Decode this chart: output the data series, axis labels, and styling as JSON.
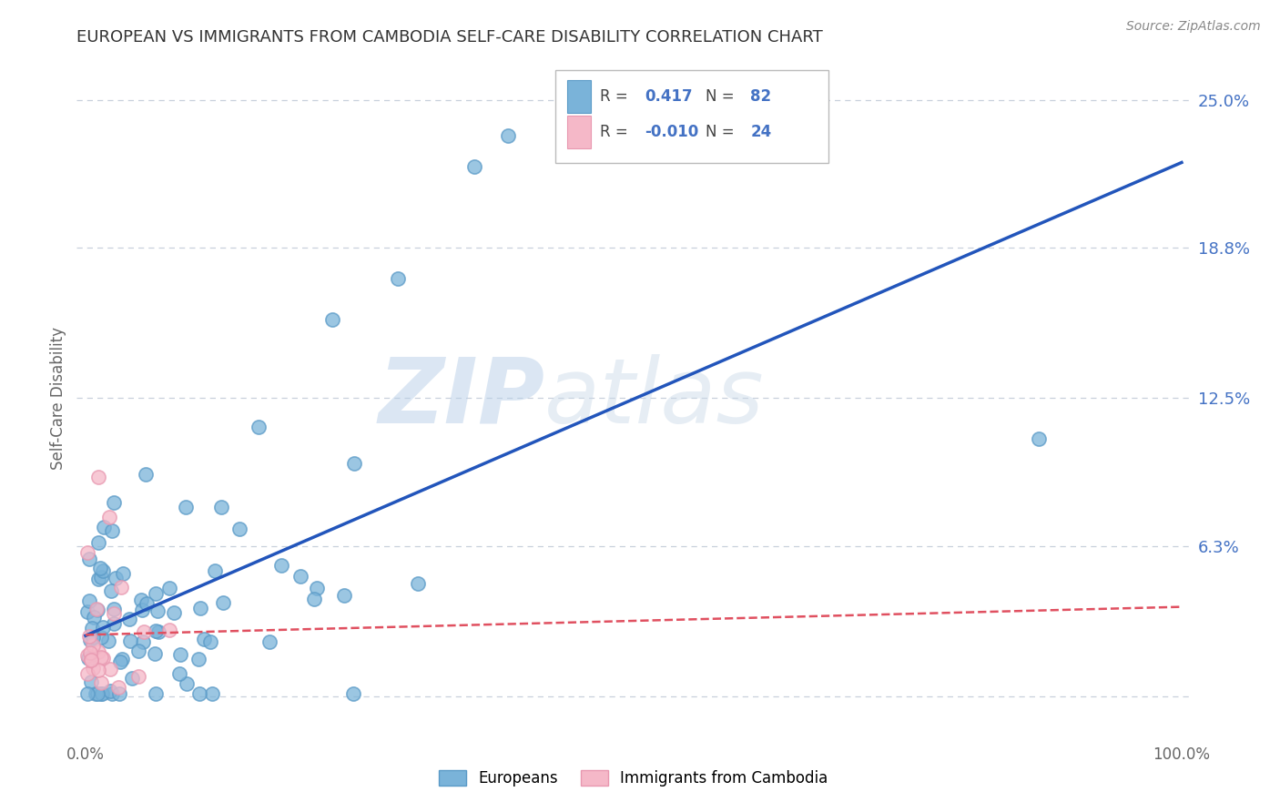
{
  "title": "EUROPEAN VS IMMIGRANTS FROM CAMBODIA SELF-CARE DISABILITY CORRELATION CHART",
  "source": "Source: ZipAtlas.com",
  "ylabel": "Self-Care Disability",
  "background_color": "#ffffff",
  "watermark_zip": "ZIP",
  "watermark_atlas": "atlas",
  "european_color": "#7ab3d9",
  "european_edge": "#5a9ac7",
  "cambodia_color": "#f5b8c8",
  "cambodia_edge": "#e898b0",
  "european_line_color": "#2255bb",
  "cambodia_line_color": "#e05060",
  "R_european": 0.417,
  "N_european": 82,
  "R_cambodia": -0.01,
  "N_cambodia": 24,
  "ytick_vals": [
    0.0,
    0.063,
    0.125,
    0.188,
    0.25
  ],
  "ytick_labels": [
    "",
    "6.3%",
    "12.5%",
    "18.8%",
    "25.0%"
  ],
  "grid_color": "#c8d0dc",
  "legend_text_color": "#4472c4",
  "title_color": "#333333",
  "source_color": "#888888",
  "axis_label_color": "#666666"
}
